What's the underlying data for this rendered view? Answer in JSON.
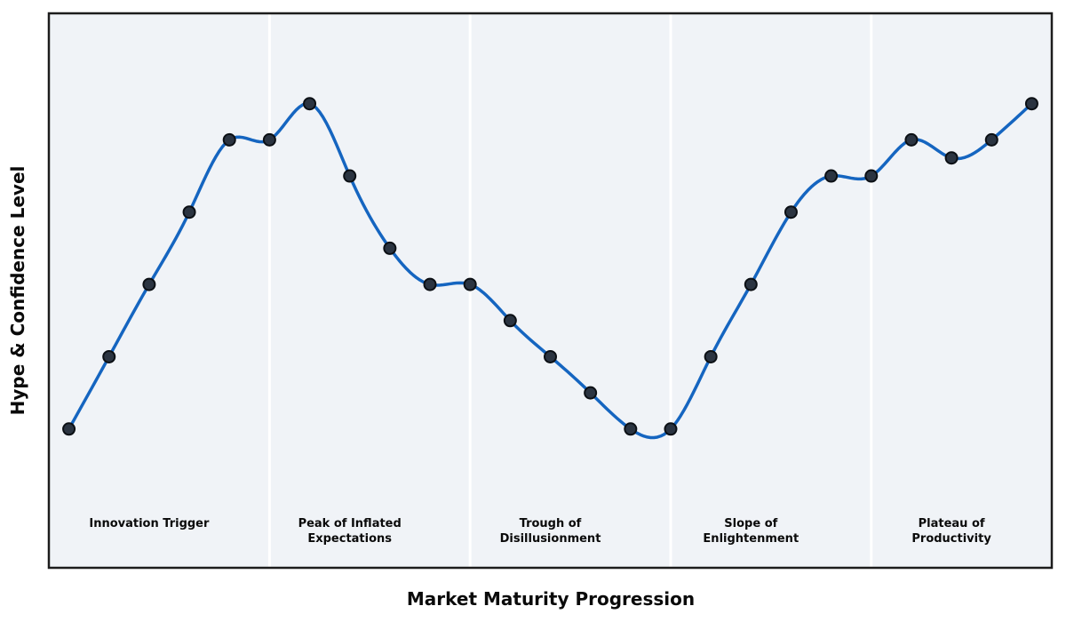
{
  "chart_data": {
    "type": "line",
    "title": "",
    "xlabel": "Market Maturity Progression",
    "ylabel": "Hype & Confidence Level",
    "x": [
      0,
      1,
      2,
      3,
      4,
      5,
      6,
      7,
      8,
      9,
      10,
      11,
      12,
      13,
      14,
      15,
      16,
      17,
      18,
      19,
      20,
      21,
      22,
      23,
      24
    ],
    "series": [
      {
        "name": "Hype & Confidence Level",
        "values": [
          10,
          20,
          30,
          40,
          50,
          50,
          55,
          45,
          35,
          30,
          30,
          25,
          20,
          15,
          10,
          10,
          20,
          30,
          40,
          45,
          45,
          50,
          47.5,
          50,
          55
        ]
      }
    ],
    "xlim": [
      -0.5,
      24.5
    ],
    "ylim": [
      -9.2,
      67.5
    ],
    "grid": false,
    "legend": "none",
    "axis_ticks": "none",
    "curve_style": "smooth-cubic-spline",
    "phase_boundaries_x": [
      5,
      10,
      15,
      20
    ],
    "phases": [
      {
        "label": "Innovation Trigger",
        "lines": [
          "Innovation Trigger"
        ],
        "center_x": 2
      },
      {
        "label": "Peak of Inflated Expectations",
        "lines": [
          "Peak of Inflated",
          "Expectations"
        ],
        "center_x": 7
      },
      {
        "label": "Trough of Disillusionment",
        "lines": [
          "Trough of",
          "Disillusionment"
        ],
        "center_x": 12
      },
      {
        "label": "Slope of Enlightenment",
        "lines": [
          "Slope of",
          "Enlightenment"
        ],
        "center_x": 17
      },
      {
        "label": "Plateau of Productivity",
        "lines": [
          "Plateau of",
          "Productivity"
        ],
        "center_x": 22
      }
    ],
    "colors": {
      "figure_background": "#ffffff",
      "plot_background": "#f0f3f7",
      "line": "#1565c0",
      "marker_fill": "#2b3441",
      "marker_edge": "#0b0f14",
      "phase_divider": "#ffffff",
      "spine": "#1c1c1c",
      "label_text": "#0a0a0a"
    }
  }
}
